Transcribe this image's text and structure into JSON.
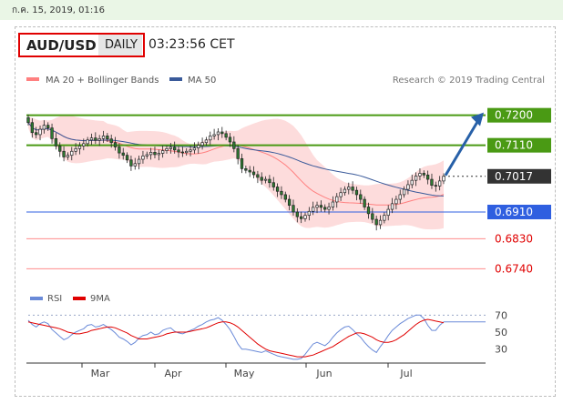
{
  "timestamp": "ก.ค. 15, 2019, 01:16",
  "header": {
    "symbol": "AUD/USD",
    "period": "DAILY",
    "time": "03:23:56 CET"
  },
  "legend": {
    "ma20": "MA 20 + Bollinger Bands",
    "ma50": "MA 50",
    "credit": "Research © 2019 Trading Central"
  },
  "colors": {
    "support": "#2f5fe0",
    "resistance": "#4a9a14",
    "support_minor": "#ff8c8c",
    "current": "#333333",
    "arrow": "#2760a8",
    "ma20": "#ff8080",
    "ma50": "#3a5a9a",
    "band": "#fddcdc",
    "candle_up": "#ffffff",
    "candle_down": "#2e7d32"
  },
  "chart_data": [
    {
      "type": "candlestick",
      "ylim": [
        0.67,
        0.727
      ],
      "x": [
        "Mar",
        "Apr",
        "May",
        "Jun",
        "Jul"
      ],
      "levels": [
        {
          "value": "0.7200",
          "kind": "resistance"
        },
        {
          "value": "0.7110",
          "kind": "resistance"
        },
        {
          "value": "0.7017",
          "kind": "current"
        },
        {
          "value": "0.6910",
          "kind": "support"
        },
        {
          "value": "0.6830",
          "kind": "support-minor"
        },
        {
          "value": "0.6740",
          "kind": "support-minor"
        }
      ],
      "closes": [
        0.7178,
        0.7148,
        0.7142,
        0.7158,
        0.717,
        0.7162,
        0.713,
        0.7108,
        0.7092,
        0.7075,
        0.708,
        0.7092,
        0.71,
        0.7108,
        0.7115,
        0.7126,
        0.7132,
        0.7125,
        0.713,
        0.7138,
        0.7129,
        0.7118,
        0.7105,
        0.7087,
        0.708,
        0.7066,
        0.7048,
        0.7055,
        0.7068,
        0.7078,
        0.7082,
        0.7089,
        0.7082,
        0.7086,
        0.7094,
        0.71,
        0.7104,
        0.7096,
        0.709,
        0.7088,
        0.7092,
        0.7096,
        0.7102,
        0.711,
        0.7118,
        0.7126,
        0.7138,
        0.7142,
        0.715,
        0.7145,
        0.7134,
        0.712,
        0.71,
        0.707,
        0.704,
        0.7035,
        0.703,
        0.7022,
        0.7014,
        0.7005,
        0.7008,
        0.6998,
        0.6985,
        0.6972,
        0.6962,
        0.6948,
        0.693,
        0.691,
        0.6896,
        0.689,
        0.69,
        0.6912,
        0.6924,
        0.693,
        0.6924,
        0.6918,
        0.6925,
        0.694,
        0.6956,
        0.6968,
        0.6978,
        0.6985,
        0.6975,
        0.6962,
        0.6948,
        0.6925,
        0.6905,
        0.6888,
        0.6872,
        0.6885,
        0.69,
        0.6918,
        0.6935,
        0.6948,
        0.6962,
        0.6978,
        0.6992,
        0.7005,
        0.7018,
        0.7026,
        0.7021,
        0.7008,
        0.699,
        0.6988,
        0.7003,
        0.7017
      ],
      "ma20_note": "MA 20 with Bollinger Bands",
      "ma50_note": "MA 50"
    },
    {
      "type": "line",
      "title": "RSI",
      "series": [
        {
          "name": "RSI"
        },
        {
          "name": "9MA"
        }
      ],
      "ylim": [
        20,
        80
      ],
      "yticks": [
        "70",
        "50",
        "30"
      ],
      "rsi": [
        64,
        59,
        56,
        60,
        62,
        60,
        53,
        49,
        45,
        41,
        43,
        47,
        50,
        52,
        54,
        58,
        59,
        56,
        57,
        59,
        56,
        53,
        49,
        44,
        42,
        39,
        35,
        38,
        43,
        46,
        47,
        50,
        47,
        48,
        52,
        54,
        55,
        51,
        49,
        48,
        50,
        52,
        54,
        57,
        59,
        62,
        64,
        65,
        67,
        64,
        59,
        53,
        45,
        36,
        30,
        30,
        29,
        28,
        27,
        26,
        28,
        26,
        24,
        22,
        21,
        20,
        19,
        18,
        18,
        19,
        24,
        30,
        36,
        38,
        36,
        34,
        38,
        44,
        49,
        53,
        56,
        57,
        53,
        48,
        44,
        38,
        33,
        29,
        26,
        33,
        39,
        46,
        52,
        56,
        60,
        63,
        66,
        68,
        70,
        70,
        66,
        58,
        52,
        52,
        58,
        62
      ],
      "sma9": [
        62,
        61,
        60,
        59,
        58,
        57,
        56,
        55,
        54,
        52,
        50,
        49,
        48,
        48,
        49,
        50,
        52,
        53,
        54,
        55,
        56,
        56,
        55,
        53,
        51,
        49,
        46,
        44,
        42,
        42,
        42,
        43,
        44,
        45,
        46,
        48,
        49,
        50,
        50,
        50,
        50,
        51,
        52,
        53,
        54,
        55,
        57,
        59,
        61,
        62,
        62,
        61,
        59,
        56,
        52,
        48,
        44,
        40,
        36,
        33,
        30,
        28,
        27,
        26,
        25,
        24,
        23,
        22,
        21,
        21,
        21,
        22,
        23,
        25,
        27,
        29,
        31,
        33,
        36,
        39,
        42,
        45,
        47,
        49,
        49,
        48,
        46,
        44,
        41,
        39,
        38,
        38,
        39,
        41,
        44,
        47,
        51,
        55,
        59,
        62,
        64,
        65,
        64,
        63,
        62,
        61
      ]
    }
  ]
}
